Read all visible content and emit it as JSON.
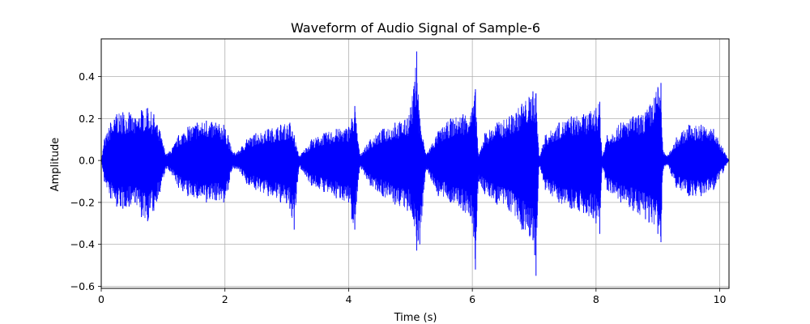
{
  "chart_data": {
    "type": "line",
    "title": "Waveform of Audio Signal of Sample-6",
    "xlabel": "Time (s)",
    "ylabel": "Amplitude",
    "xlim": [
      0,
      10.15
    ],
    "ylim": [
      -0.61,
      0.58
    ],
    "x_ticks": [
      0,
      2,
      4,
      6,
      8,
      10
    ],
    "y_ticks": [
      -0.6,
      -0.4,
      -0.2,
      0.0,
      0.2,
      0.4
    ],
    "x_tick_labels": [
      "0",
      "2",
      "4",
      "6",
      "8",
      "10"
    ],
    "y_tick_labels": [
      "−0.6",
      "−0.4",
      "−0.2",
      "0.0",
      "0.2",
      "0.4"
    ],
    "grid": true,
    "line_color": "#0000ff",
    "series": [
      {
        "x": [
          0.0,
          0.05,
          0.15,
          0.25,
          0.35,
          0.45,
          0.55,
          0.65,
          0.75,
          0.85,
          0.95,
          1.05,
          1.15,
          1.25,
          1.4,
          1.55,
          1.7,
          1.85,
          1.98,
          2.05,
          2.12,
          2.2,
          2.35,
          2.5,
          2.7,
          2.9,
          3.05,
          3.12,
          3.2,
          3.4,
          3.6,
          3.8,
          4.0,
          4.05,
          4.1,
          4.18,
          4.35,
          4.55,
          4.75,
          4.95,
          5.05,
          5.1,
          5.15,
          5.25,
          5.45,
          5.65,
          5.85,
          6.0,
          6.05,
          6.1,
          6.2,
          6.4,
          6.6,
          6.8,
          6.98,
          7.03,
          7.08,
          7.18,
          7.4,
          7.6,
          7.8,
          8.0,
          8.06,
          8.1,
          8.18,
          8.4,
          8.6,
          8.8,
          9.0,
          9.05,
          9.08,
          9.15,
          9.3,
          9.5,
          9.7,
          9.9,
          10.05,
          10.15
        ],
        "upper": [
          0.0,
          0.1,
          0.18,
          0.22,
          0.23,
          0.23,
          0.2,
          0.24,
          0.25,
          0.22,
          0.14,
          0.03,
          0.06,
          0.12,
          0.16,
          0.18,
          0.19,
          0.18,
          0.17,
          0.12,
          0.04,
          0.04,
          0.1,
          0.13,
          0.15,
          0.17,
          0.18,
          0.12,
          0.02,
          0.1,
          0.13,
          0.15,
          0.16,
          0.2,
          0.26,
          0.03,
          0.1,
          0.15,
          0.18,
          0.2,
          0.34,
          0.52,
          0.2,
          0.03,
          0.14,
          0.2,
          0.22,
          0.25,
          0.34,
          0.02,
          0.13,
          0.18,
          0.21,
          0.27,
          0.33,
          0.32,
          0.02,
          0.12,
          0.18,
          0.21,
          0.22,
          0.25,
          0.28,
          0.02,
          0.12,
          0.18,
          0.21,
          0.23,
          0.35,
          0.37,
          0.05,
          0.02,
          0.11,
          0.17,
          0.17,
          0.15,
          0.06,
          0.0
        ],
        "lower": [
          0.0,
          -0.1,
          -0.18,
          -0.22,
          -0.23,
          -0.22,
          -0.2,
          -0.27,
          -0.29,
          -0.24,
          -0.15,
          -0.04,
          -0.07,
          -0.13,
          -0.17,
          -0.18,
          -0.2,
          -0.19,
          -0.2,
          -0.14,
          -0.04,
          -0.04,
          -0.11,
          -0.14,
          -0.17,
          -0.2,
          -0.23,
          -0.33,
          -0.03,
          -0.12,
          -0.15,
          -0.18,
          -0.2,
          -0.28,
          -0.33,
          -0.03,
          -0.12,
          -0.17,
          -0.21,
          -0.24,
          -0.28,
          -0.43,
          -0.4,
          -0.04,
          -0.17,
          -0.2,
          -0.24,
          -0.3,
          -0.52,
          -0.1,
          -0.16,
          -0.21,
          -0.24,
          -0.33,
          -0.38,
          -0.55,
          -0.03,
          -0.14,
          -0.2,
          -0.23,
          -0.25,
          -0.3,
          -0.35,
          -0.03,
          -0.14,
          -0.2,
          -0.24,
          -0.28,
          -0.35,
          -0.39,
          -0.05,
          -0.02,
          -0.13,
          -0.17,
          -0.17,
          -0.14,
          -0.06,
          0.0
        ]
      }
    ]
  }
}
